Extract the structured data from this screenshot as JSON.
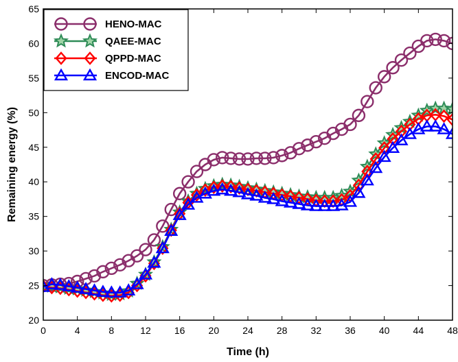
{
  "chart_data": {
    "type": "line",
    "xlabel": "Time (h)",
    "ylabel": "Remaining energy (%)",
    "xlim": [
      0,
      48
    ],
    "ylim": [
      20,
      65
    ],
    "xticks": [
      0,
      4,
      8,
      12,
      16,
      20,
      24,
      28,
      32,
      36,
      40,
      44,
      48
    ],
    "yticks": [
      20,
      25,
      30,
      35,
      40,
      45,
      50,
      55,
      60,
      65
    ],
    "grid": false,
    "legend_position": "top-left",
    "x": [
      0,
      1,
      2,
      3,
      4,
      5,
      6,
      7,
      8,
      9,
      10,
      11,
      12,
      13,
      14,
      15,
      16,
      17,
      18,
      19,
      20,
      21,
      22,
      23,
      24,
      25,
      26,
      27,
      28,
      29,
      30,
      31,
      32,
      33,
      34,
      35,
      36,
      37,
      38,
      39,
      40,
      41,
      42,
      43,
      44,
      45,
      46,
      47,
      48
    ],
    "series": [
      {
        "name": "HENO-MAC",
        "color": "#8b2e6b",
        "marker": "circle",
        "values": [
          25.0,
          25.1,
          25.2,
          25.3,
          25.6,
          26.0,
          26.4,
          27.0,
          27.5,
          28.0,
          28.6,
          29.3,
          30.2,
          31.6,
          33.6,
          36.0,
          38.3,
          40.0,
          41.5,
          42.5,
          43.2,
          43.5,
          43.4,
          43.3,
          43.3,
          43.4,
          43.4,
          43.5,
          43.8,
          44.2,
          44.8,
          45.3,
          45.8,
          46.3,
          47.0,
          47.6,
          48.3,
          49.6,
          51.6,
          53.6,
          55.2,
          56.5,
          57.6,
          58.6,
          59.6,
          60.4,
          60.6,
          60.4,
          60.0
        ]
      },
      {
        "name": "QAEE-MAC",
        "color": "#2e8b57",
        "marker": "star",
        "values": [
          25.0,
          24.9,
          24.8,
          24.6,
          24.5,
          24.3,
          24.1,
          23.9,
          23.7,
          23.8,
          24.2,
          25.3,
          26.6,
          28.4,
          30.6,
          33.1,
          35.6,
          37.2,
          38.3,
          39.0,
          39.4,
          39.6,
          39.5,
          39.3,
          39.1,
          38.9,
          38.7,
          38.5,
          38.3,
          38.1,
          37.9,
          37.8,
          37.7,
          37.7,
          37.7,
          38.0,
          38.6,
          40.2,
          42.2,
          44.0,
          45.6,
          46.8,
          47.8,
          48.7,
          49.6,
          50.3,
          50.6,
          50.6,
          50.5
        ]
      },
      {
        "name": "QPPD-MAC",
        "color": "#ff0000",
        "marker": "diamond",
        "values": [
          24.9,
          24.7,
          24.6,
          24.4,
          24.2,
          24.0,
          23.8,
          23.6,
          23.5,
          23.6,
          24.0,
          25.0,
          26.4,
          28.2,
          30.4,
          33.0,
          35.4,
          37.0,
          38.1,
          38.8,
          39.2,
          39.4,
          39.3,
          39.1,
          38.9,
          38.7,
          38.5,
          38.3,
          38.1,
          37.9,
          37.7,
          37.5,
          37.3,
          37.2,
          37.2,
          37.4,
          38.0,
          39.5,
          41.5,
          43.3,
          44.9,
          46.2,
          47.3,
          48.3,
          49.1,
          49.6,
          49.7,
          49.5,
          49.0
        ]
      },
      {
        "name": "ENCOD-MAC",
        "color": "#0000ff",
        "marker": "triangle",
        "values": [
          24.8,
          25.2,
          25.1,
          24.9,
          24.7,
          24.5,
          24.3,
          24.1,
          24.0,
          24.0,
          24.3,
          25.2,
          26.6,
          28.3,
          30.4,
          32.9,
          35.2,
          36.7,
          37.7,
          38.3,
          38.7,
          38.9,
          38.7,
          38.5,
          38.2,
          38.0,
          37.7,
          37.5,
          37.2,
          37.0,
          36.8,
          36.6,
          36.5,
          36.5,
          36.5,
          36.6,
          37.1,
          38.4,
          40.2,
          42.0,
          43.6,
          44.9,
          46.0,
          46.9,
          47.6,
          48.0,
          48.0,
          47.6,
          46.9
        ]
      }
    ]
  }
}
